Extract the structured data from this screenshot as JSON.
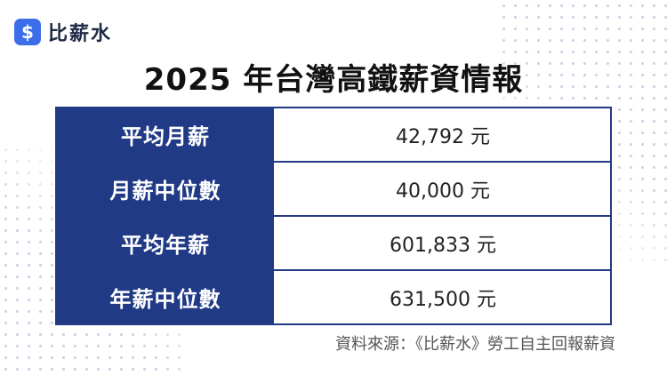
{
  "brand": {
    "badge_symbol": "$",
    "name": "比薪水",
    "color": "#3b6ee8"
  },
  "title": "2025 年台灣高鐵薪資情報",
  "table": {
    "header_color": "#213a86",
    "rows": [
      {
        "label": "平均月薪",
        "value": "42,792 元"
      },
      {
        "label": "月薪中位數",
        "value": "40,000 元"
      },
      {
        "label": "平均年薪",
        "value": "601,833 元"
      },
      {
        "label": "年薪中位數",
        "value": "631,500 元"
      }
    ]
  },
  "source": "資料來源：《比薪水》勞工自主回報薪資"
}
